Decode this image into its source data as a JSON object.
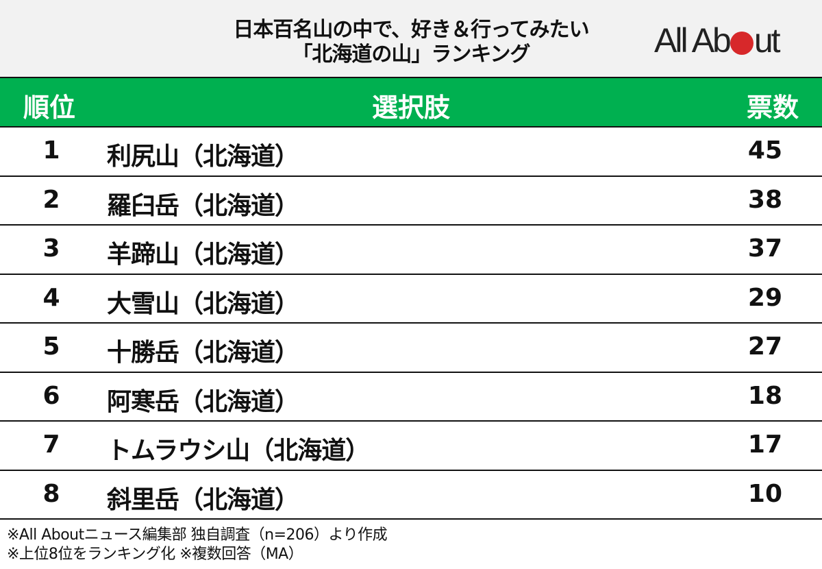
{
  "title_lines": [
    "日本百名山の中で、好き＆行ってみたい",
    "「北海道の山」ランキング"
  ],
  "logo": {
    "text_left": "All Ab",
    "text_right": "ut",
    "dot_color": "#d7282a"
  },
  "colors": {
    "header_bg": "#00b050",
    "title_bg": "#f2f2f2"
  },
  "chart_data": {
    "type": "table",
    "columns": [
      "順位",
      "選択肢",
      "票数"
    ],
    "rows": [
      {
        "rank": "1",
        "name": "利尻山（北海道）",
        "votes": 45
      },
      {
        "rank": "2",
        "name": "羅臼岳（北海道）",
        "votes": 38
      },
      {
        "rank": "3",
        "name": "羊蹄山（北海道）",
        "votes": 37
      },
      {
        "rank": "4",
        "name": "大雪山（北海道）",
        "votes": 29
      },
      {
        "rank": "5",
        "name": "十勝岳（北海道）",
        "votes": 27
      },
      {
        "rank": "6",
        "name": "阿寒岳（北海道）",
        "votes": 18
      },
      {
        "rank": "7",
        "name": "トムラウシ山（北海道）",
        "votes": 17
      },
      {
        "rank": "8",
        "name": "斜里岳（北海道）",
        "votes": 10
      }
    ]
  },
  "footnotes": [
    "※All Aboutニュース編集部 独自調査（n=206）より作成",
    "※上位8位をランキング化 ※複数回答（MA）"
  ]
}
